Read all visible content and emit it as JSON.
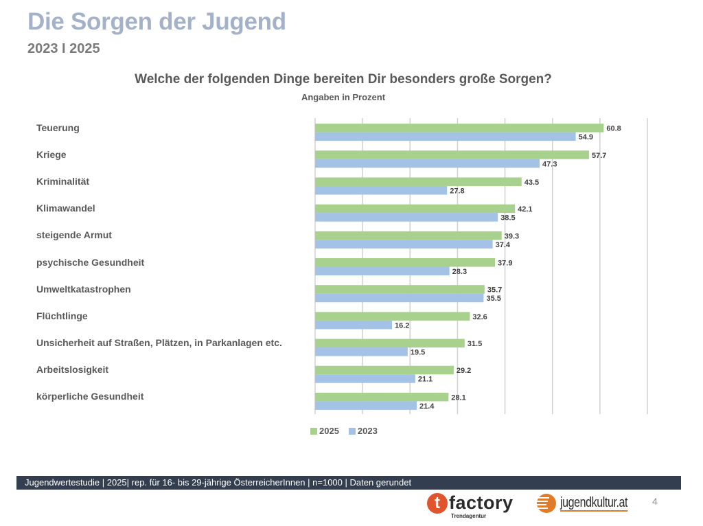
{
  "header": {
    "title": "Die Sorgen der Jugend",
    "subtitle": "2023 I 2025"
  },
  "chart_data": {
    "type": "bar",
    "orientation": "horizontal",
    "title": "Welche der folgenden Dinge bereiten Dir besonders große Sorgen?",
    "subtitle": "Angaben in Prozent",
    "xlabel": "",
    "ylabel": "",
    "xlim": [
      0,
      70
    ],
    "grid": true,
    "legend_position": "bottom",
    "categories": [
      "Teuerung",
      "Kriege",
      "Kriminalität",
      "Klimawandel",
      "steigende Armut",
      "psychische Gesundheit",
      "Umweltkatastrophen",
      "Flüchtlinge",
      "Unsicherheit auf Straßen, Plätzen, in Parkanlagen etc.",
      "Arbeitslosigkeit",
      "körperliche Gesundheit"
    ],
    "series": [
      {
        "name": "2025",
        "color": "#a9d18e",
        "values": [
          60.8,
          57.7,
          43.5,
          42.1,
          39.3,
          37.9,
          35.7,
          32.6,
          31.5,
          29.2,
          28.1
        ]
      },
      {
        "name": "2023",
        "color": "#a4c2e6",
        "values": [
          54.9,
          47.3,
          27.8,
          38.5,
          37.4,
          28.3,
          35.5,
          16.2,
          19.5,
          21.1,
          21.4
        ]
      }
    ]
  },
  "footer": {
    "text": "Jugendwertestudie | 2025| rep. für 16- bis 29-jährige ÖsterreicherInnen | n=1000 | Daten gerundet",
    "logo1_letter": "t",
    "logo1_name": "factory",
    "logo1_sub": "Trendagentur",
    "logo2_name": "jugendkultur.at",
    "page_number": "4"
  },
  "colors": {
    "title": "#a3b1c9",
    "footer_bar": "#333f50",
    "accent_orange": "#e07b2a",
    "accent_red": "#e0542e"
  }
}
